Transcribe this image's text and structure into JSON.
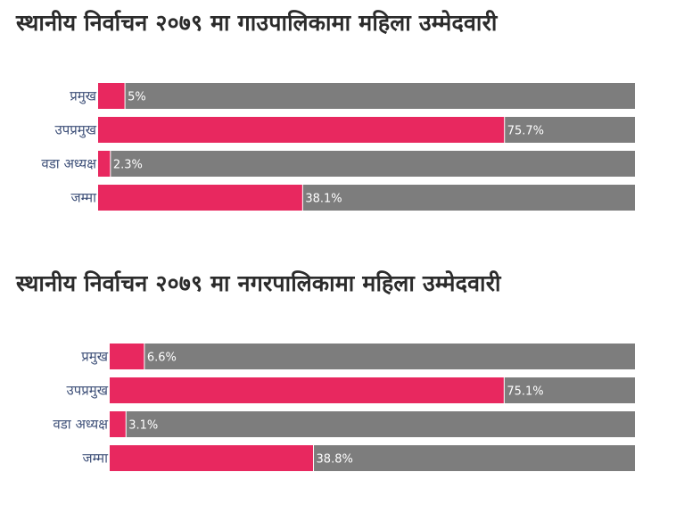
{
  "chart_data": [
    {
      "type": "bar",
      "orientation": "horizontal",
      "stacked": true,
      "title": "स्थानीय निर्वाचन २०७९ मा गाउपालिकामा महिला उम्मेदवारी",
      "categories": [
        "प्रमुख",
        "उपप्रमुख",
        "वडा अध्यक्ष",
        "जम्मा"
      ],
      "values": [
        5,
        75.7,
        2.3,
        38.1
      ],
      "value_labels": [
        "5%",
        "75.7%",
        "2.3%",
        "38.1%"
      ],
      "xlim": [
        0,
        100
      ],
      "grid": false,
      "colors": {
        "value": "#e8285f",
        "remainder": "#7d7d7d"
      }
    },
    {
      "type": "bar",
      "orientation": "horizontal",
      "stacked": true,
      "title": "स्थानीय निर्वाचन २०७९ मा नगरपालिकामा महिला उम्मेदवारी",
      "categories": [
        "प्रमुख",
        "उपप्रमुख",
        "वडा अध्यक्ष",
        "जम्मा"
      ],
      "values": [
        6.6,
        75.1,
        3.1,
        38.8
      ],
      "value_labels": [
        "6.6%",
        "75.1%",
        "3.1%",
        "38.8%"
      ],
      "xlim": [
        0,
        100
      ],
      "grid": false,
      "colors": {
        "value": "#e8285f",
        "remainder": "#7d7d7d"
      }
    }
  ]
}
